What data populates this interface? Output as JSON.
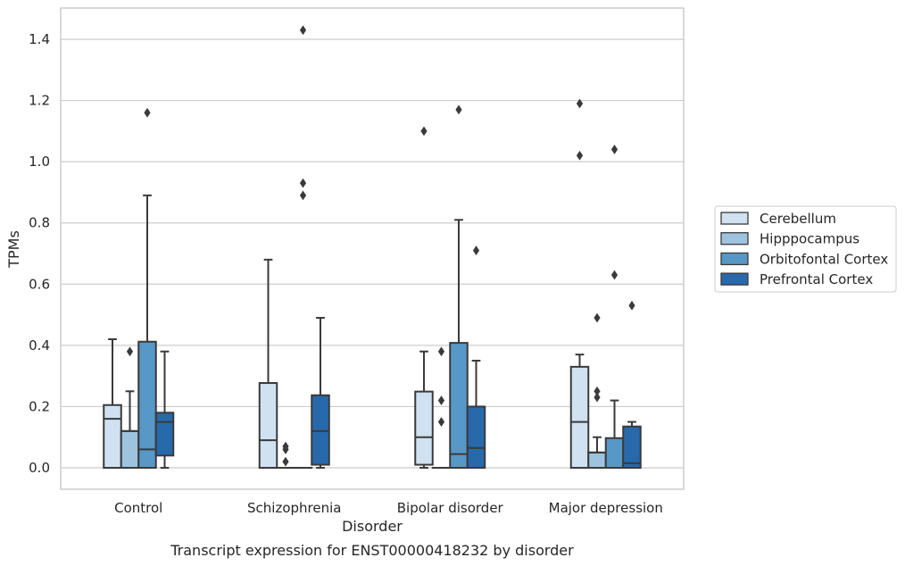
{
  "chart_data": {
    "type": "box",
    "title": "",
    "caption": "Transcript expression for ENST00000418232 by disorder",
    "xlabel": "Disorder",
    "ylabel": "TPMs",
    "ylim": [
      -0.07,
      1.5
    ],
    "yticks": [
      "0.0",
      "0.2",
      "0.4",
      "0.6",
      "0.8",
      "1.0",
      "1.2",
      "1.4"
    ],
    "grid": "horizontal",
    "legend_placement": "right",
    "categories": [
      "Control",
      "Schizophrenia",
      "Bipolar disorder",
      "Major depression"
    ],
    "series": [
      {
        "name": "Cerebellum",
        "color": "#d0e1f1",
        "boxes": [
          {
            "q1": 0.0,
            "median": 0.16,
            "q3": 0.205,
            "whisker_low": 0.0,
            "whisker_high": 0.42,
            "outliers": []
          },
          {
            "q1": 0.0,
            "median": 0.09,
            "q3": 0.277,
            "whisker_low": 0.0,
            "whisker_high": 0.68,
            "outliers": []
          },
          {
            "q1": 0.01,
            "median": 0.1,
            "q3": 0.249,
            "whisker_low": 0.0,
            "whisker_high": 0.38,
            "outliers": [
              1.1
            ]
          },
          {
            "q1": 0.0,
            "median": 0.15,
            "q3": 0.33,
            "whisker_low": 0.0,
            "whisker_high": 0.37,
            "outliers": [
              1.02,
              1.19
            ]
          }
        ]
      },
      {
        "name": "Hipppocampus",
        "color": "#9dc3df",
        "boxes": [
          {
            "q1": 0.0,
            "median": 0.12,
            "q3": 0.12,
            "whisker_low": 0.0,
            "whisker_high": 0.25,
            "outliers": [
              0.38
            ]
          },
          {
            "q1": 0.0,
            "median": 0.0,
            "q3": 0.0,
            "whisker_low": 0.0,
            "whisker_high": 0.0,
            "outliers": [
              0.02,
              0.06,
              0.07
            ]
          },
          {
            "q1": 0.0,
            "median": 0.0,
            "q3": 0.0,
            "whisker_low": 0.0,
            "whisker_high": 0.0,
            "outliers": [
              0.15,
              0.22,
              0.38
            ]
          },
          {
            "q1": 0.0,
            "median": 0.05,
            "q3": 0.05,
            "whisker_low": 0.0,
            "whisker_high": 0.1,
            "outliers": [
              0.23,
              0.25,
              0.49
            ]
          }
        ]
      },
      {
        "name": "Orbitofontal Cortex",
        "color": "#5798c6",
        "boxes": [
          {
            "q1": 0.0,
            "median": 0.06,
            "q3": 0.412,
            "whisker_low": 0.0,
            "whisker_high": 0.89,
            "outliers": [
              1.16
            ]
          },
          {
            "q1": 0.0,
            "median": 0.0,
            "q3": 0.0,
            "whisker_low": 0.0,
            "whisker_high": 0.0,
            "outliers": [
              0.89,
              0.93,
              1.43
            ]
          },
          {
            "q1": 0.0,
            "median": 0.045,
            "q3": 0.408,
            "whisker_low": 0.0,
            "whisker_high": 0.81,
            "outliers": [
              1.17
            ]
          },
          {
            "q1": 0.0,
            "median": 0.0,
            "q3": 0.097,
            "whisker_low": 0.0,
            "whisker_high": 0.22,
            "outliers": [
              0.63,
              1.04
            ]
          }
        ]
      },
      {
        "name": "Prefrontal Cortex",
        "color": "#2769ab",
        "boxes": [
          {
            "q1": 0.04,
            "median": 0.15,
            "q3": 0.18,
            "whisker_low": 0.0,
            "whisker_high": 0.38,
            "outliers": []
          },
          {
            "q1": 0.01,
            "median": 0.12,
            "q3": 0.237,
            "whisker_low": 0.0,
            "whisker_high": 0.49,
            "outliers": []
          },
          {
            "q1": 0.0,
            "median": 0.065,
            "q3": 0.2,
            "whisker_low": 0.0,
            "whisker_high": 0.35,
            "outliers": [
              0.71
            ]
          },
          {
            "q1": 0.0,
            "median": 0.015,
            "q3": 0.135,
            "whisker_low": 0.0,
            "whisker_high": 0.15,
            "outliers": [
              0.53
            ]
          }
        ]
      }
    ]
  }
}
